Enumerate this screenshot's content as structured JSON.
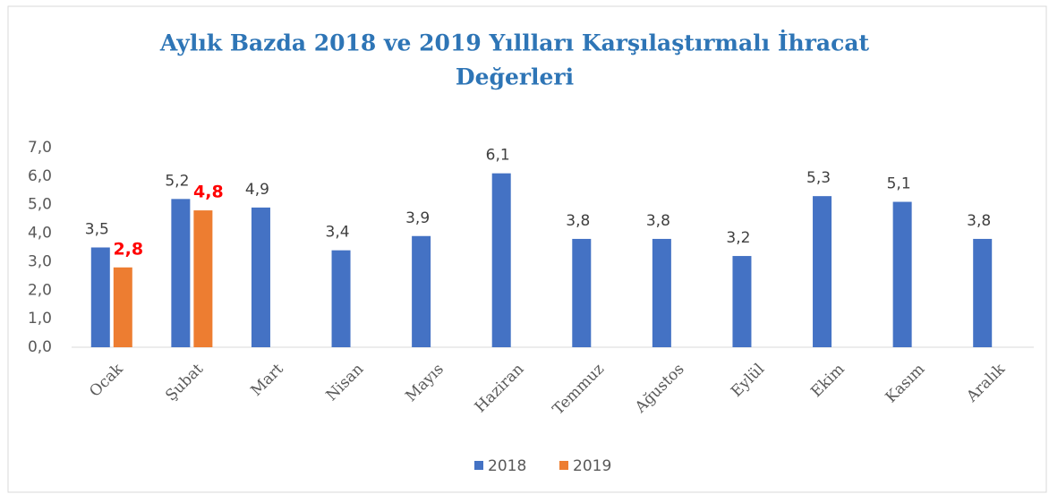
{
  "chart_data": {
    "type": "bar",
    "title": [
      "Aylık Bazda 2018 ve 2019 Yıllları Karşılaştırmalı İhracat",
      "Değerleri"
    ],
    "categories": [
      "Ocak",
      "Şubat",
      "Mart",
      "Nisan",
      "Mayıs",
      "Haziran",
      "Temmuz",
      "Ağustos",
      "Eylül",
      "Ekim",
      "Kasım",
      "Aralık"
    ],
    "series": [
      {
        "name": "2018",
        "color": "#4472c4",
        "label_color": "#404040",
        "label_bold": false,
        "values": [
          3.5,
          5.2,
          4.9,
          3.4,
          3.9,
          6.1,
          3.8,
          3.8,
          3.2,
          5.3,
          5.1,
          3.8
        ],
        "value_labels": [
          "3,5",
          "5,2",
          "4,9",
          "3,4",
          "3,9",
          "6,1",
          "3,8",
          "3,8",
          "3,2",
          "5,3",
          "5,1",
          "3,8"
        ]
      },
      {
        "name": "2019",
        "color": "#ed7d31",
        "label_color": "#ff0000",
        "label_bold": true,
        "values": [
          2.8,
          4.8,
          null,
          null,
          null,
          null,
          null,
          null,
          null,
          null,
          null,
          null
        ],
        "value_labels": [
          "2,8",
          "4,8",
          null,
          null,
          null,
          null,
          null,
          null,
          null,
          null,
          null,
          null
        ]
      }
    ],
    "ylim": [
      0,
      7
    ],
    "yticks": [
      {
        "value": 0,
        "label": "0,0"
      },
      {
        "value": 1,
        "label": "1,0"
      },
      {
        "value": 2,
        "label": "2,0"
      },
      {
        "value": 3,
        "label": "3,0"
      },
      {
        "value": 4,
        "label": "4,0"
      },
      {
        "value": 5,
        "label": "5,0"
      },
      {
        "value": 6,
        "label": "6,0"
      },
      {
        "value": 7,
        "label": "7,0"
      }
    ],
    "grid": false,
    "legend": "bottom"
  }
}
